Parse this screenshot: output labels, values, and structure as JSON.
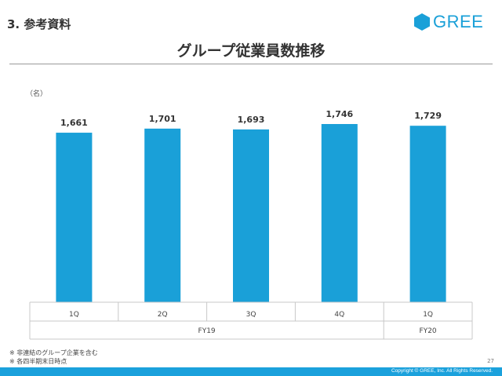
{
  "header": {
    "section": "3. 参考資料",
    "logo_text": "GREE",
    "brand_color": "#1aa0d8"
  },
  "chart_data": {
    "type": "bar",
    "title": "グループ従業員数推移",
    "unit_label": "（名）",
    "categories": [
      "1Q",
      "2Q",
      "3Q",
      "4Q",
      "1Q"
    ],
    "groups": [
      {
        "label": "FY19",
        "count": 4
      },
      {
        "label": "FY20",
        "count": 1
      }
    ],
    "values": [
      1661,
      1701,
      1693,
      1746,
      1729
    ],
    "value_labels": [
      "1,661",
      "1,701",
      "1,693",
      "1,746",
      "1,729"
    ],
    "ylim": [
      0,
      1746
    ],
    "bar_color": "#1aa0d8",
    "grid": false
  },
  "notes": [
    "※  非連結のグループ企業を含む",
    "※  各四半期末日時点"
  ],
  "page_number": "27",
  "footer": {
    "copyright": "Copyright © GREE, Inc. All Rights Reserved.",
    "color": "#1ba1dc"
  }
}
